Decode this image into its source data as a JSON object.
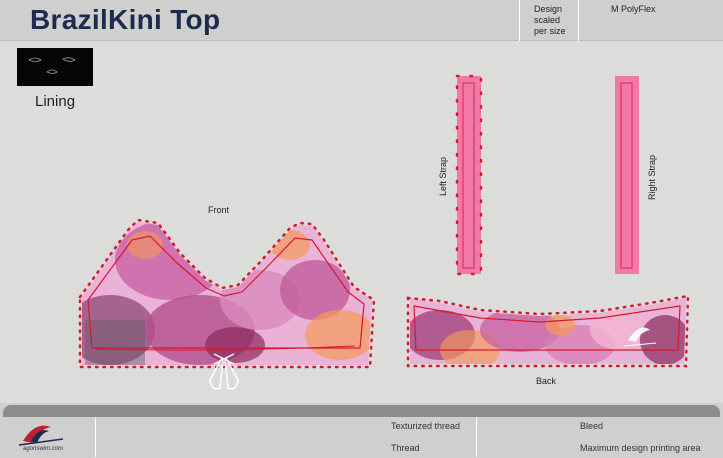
{
  "header": {
    "title": "BrazilKini Top",
    "design_note_lines": [
      "Design",
      "scaled",
      "per size"
    ],
    "fabric": "M PolyFlex"
  },
  "lining": {
    "label": "Lining"
  },
  "pieces": {
    "front": "Front",
    "back": "Back",
    "left_strap": "Left Strap",
    "right_strap": "Right Strap"
  },
  "legend": {
    "texturized_thread": "Texturized thread",
    "thread": "Thread",
    "bleed": "Bleed",
    "max_area": "Maximum design printing area"
  },
  "brand": {
    "name": "agonswim.com"
  },
  "colors": {
    "title": "#1d2b4f",
    "bleed_red": "#d8182f",
    "texturized": "#c8508f",
    "strap_pink": "#f07aa6",
    "strap_inner": "#e63c74",
    "accent_orange": "#f39a57"
  }
}
